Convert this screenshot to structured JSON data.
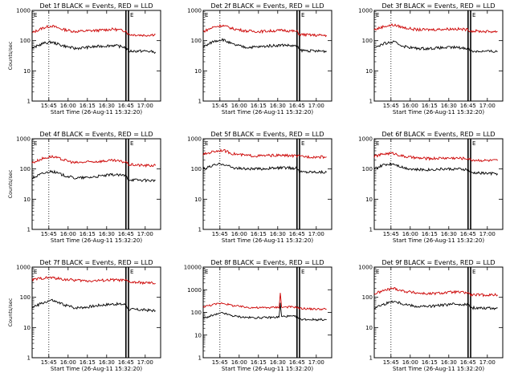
{
  "layout": {
    "columns": 3,
    "rows": 3
  },
  "chart_data": [
    {
      "type": "line",
      "title": "Det 1f BLACK = Events, RED = LLD",
      "xlabel": "Start Time (26-Aug-11 15:32:20)",
      "ylabel": "Counts/sec",
      "yscale": "log",
      "ylim": [
        1,
        1000
      ],
      "yticks": [
        1,
        10,
        100,
        1000
      ],
      "xlim": [
        "15:32",
        "17:12"
      ],
      "xticks": [
        "15:45",
        "16:00",
        "16:15",
        "16:30",
        "16:45",
        "17:00"
      ],
      "vlines": [
        {
          "time": "15:45",
          "style": "dotted"
        },
        {
          "time": "16:45",
          "style": "solid-thick"
        },
        {
          "time": "16:47",
          "style": "solid-thick"
        }
      ],
      "markers": [
        {
          "time": "15:32",
          "label": "E"
        },
        {
          "time": "16:47",
          "label": "E"
        }
      ],
      "series": [
        {
          "color": "#cc0000",
          "x": [
            "15:32",
            "15:40",
            "15:47",
            "15:55",
            "16:05",
            "16:15",
            "16:25",
            "16:35",
            "16:45",
            "16:47",
            "17:00",
            "17:08"
          ],
          "y": [
            180,
            260,
            310,
            240,
            200,
            210,
            220,
            240,
            210,
            160,
            150,
            160
          ]
        },
        {
          "color": "#000000",
          "x": [
            "15:32",
            "15:40",
            "15:47",
            "15:55",
            "16:05",
            "16:15",
            "16:25",
            "16:35",
            "16:45",
            "16:47",
            "17:00",
            "17:08"
          ],
          "y": [
            55,
            80,
            90,
            70,
            55,
            60,
            65,
            70,
            60,
            45,
            45,
            42
          ]
        }
      ]
    },
    {
      "type": "line",
      "title": "Det 2f BLACK = Events, RED = LLD",
      "xlabel": "Start Time (26-Aug-11 15:32:20)",
      "ylabel": "",
      "yscale": "log",
      "ylim": [
        1,
        1000
      ],
      "yticks": [
        1,
        10,
        100,
        1000
      ],
      "xlim": [
        "15:32",
        "17:12"
      ],
      "xticks": [
        "15:45",
        "16:00",
        "16:15",
        "16:30",
        "16:45",
        "17:00"
      ],
      "vlines": [
        {
          "time": "15:45",
          "style": "dotted"
        },
        {
          "time": "16:45",
          "style": "solid-thick"
        },
        {
          "time": "16:47",
          "style": "solid-thick"
        }
      ],
      "markers": [
        {
          "time": "15:32",
          "label": "E"
        },
        {
          "time": "16:47",
          "label": "E"
        }
      ],
      "series": [
        {
          "color": "#cc0000",
          "x": [
            "15:32",
            "15:40",
            "15:47",
            "15:55",
            "16:05",
            "16:15",
            "16:25",
            "16:35",
            "16:45",
            "16:47",
            "17:00",
            "17:08"
          ],
          "y": [
            200,
            280,
            320,
            250,
            210,
            200,
            210,
            220,
            200,
            160,
            150,
            150
          ]
        },
        {
          "color": "#000000",
          "x": [
            "15:32",
            "15:40",
            "15:47",
            "15:55",
            "16:05",
            "16:15",
            "16:25",
            "16:35",
            "16:45",
            "16:47",
            "17:00",
            "17:08"
          ],
          "y": [
            60,
            95,
            110,
            75,
            60,
            62,
            68,
            72,
            65,
            48,
            45,
            45
          ]
        }
      ]
    },
    {
      "type": "line",
      "title": "Det 3f BLACK = Events, RED = LLD",
      "xlabel": "Start Time (26-Aug-11 15:32:20)",
      "ylabel": "",
      "yscale": "log",
      "ylim": [
        1,
        1000
      ],
      "yticks": [
        1,
        10,
        100,
        1000
      ],
      "xlim": [
        "15:32",
        "17:12"
      ],
      "xticks": [
        "15:45",
        "16:00",
        "16:15",
        "16:30",
        "16:45",
        "17:00"
      ],
      "vlines": [
        {
          "time": "15:45",
          "style": "dotted"
        },
        {
          "time": "16:45",
          "style": "solid-thick"
        },
        {
          "time": "16:47",
          "style": "solid-thick"
        }
      ],
      "markers": [
        {
          "time": "15:32",
          "label": "E"
        },
        {
          "time": "16:47",
          "label": "E"
        }
      ],
      "series": [
        {
          "color": "#cc0000",
          "x": [
            "15:32",
            "15:40",
            "15:47",
            "15:55",
            "16:05",
            "16:15",
            "16:25",
            "16:35",
            "16:45",
            "16:47",
            "17:00",
            "17:08"
          ],
          "y": [
            230,
            300,
            330,
            270,
            230,
            230,
            240,
            245,
            230,
            210,
            200,
            200
          ]
        },
        {
          "color": "#000000",
          "x": [
            "15:32",
            "15:40",
            "15:47",
            "15:55",
            "16:05",
            "16:15",
            "16:25",
            "16:35",
            "16:45",
            "16:47",
            "17:00",
            "17:08"
          ],
          "y": [
            60,
            80,
            90,
            65,
            55,
            55,
            58,
            60,
            55,
            45,
            44,
            44
          ]
        }
      ]
    },
    {
      "type": "line",
      "title": "Det 4f BLACK = Events, RED = LLD",
      "xlabel": "Start Time (26-Aug-11 15:32:20)",
      "ylabel": "Counts/sec",
      "yscale": "log",
      "ylim": [
        1,
        1000
      ],
      "yticks": [
        1,
        10,
        100,
        1000
      ],
      "xlim": [
        "15:32",
        "17:12"
      ],
      "xticks": [
        "15:45",
        "16:00",
        "16:15",
        "16:30",
        "16:45",
        "17:00"
      ],
      "vlines": [
        {
          "time": "15:45",
          "style": "dotted"
        },
        {
          "time": "16:45",
          "style": "solid-thick"
        },
        {
          "time": "16:47",
          "style": "solid-thick"
        }
      ],
      "markers": [
        {
          "time": "15:32",
          "label": "E"
        },
        {
          "time": "16:47",
          "label": "E"
        }
      ],
      "series": [
        {
          "color": "#cc0000",
          "x": [
            "15:32",
            "15:40",
            "15:47",
            "15:55",
            "16:05",
            "16:15",
            "16:25",
            "16:35",
            "16:45",
            "16:47",
            "17:00",
            "17:08"
          ],
          "y": [
            160,
            220,
            260,
            210,
            160,
            170,
            180,
            190,
            170,
            140,
            130,
            130
          ]
        },
        {
          "color": "#000000",
          "x": [
            "15:32",
            "15:40",
            "15:47",
            "15:55",
            "16:05",
            "16:15",
            "16:25",
            "16:35",
            "16:45",
            "16:47",
            "17:00",
            "17:08"
          ],
          "y": [
            50,
            70,
            85,
            65,
            50,
            52,
            58,
            65,
            60,
            45,
            42,
            42
          ]
        }
      ]
    },
    {
      "type": "line",
      "title": "Det 5f BLACK = Events, RED = LLD",
      "xlabel": "Start Time (26-Aug-11 15:32:20)",
      "ylabel": "",
      "yscale": "log",
      "ylim": [
        1,
        1000
      ],
      "yticks": [
        1,
        10,
        100,
        1000
      ],
      "xlim": [
        "15:32",
        "17:12"
      ],
      "xticks": [
        "15:45",
        "16:00",
        "16:15",
        "16:30",
        "16:45",
        "17:00"
      ],
      "vlines": [
        {
          "time": "15:45",
          "style": "dotted"
        },
        {
          "time": "16:45",
          "style": "solid-thick"
        },
        {
          "time": "16:47",
          "style": "solid-thick"
        }
      ],
      "markers": [
        {
          "time": "15:32",
          "label": "E"
        },
        {
          "time": "16:47",
          "label": "E"
        }
      ],
      "series": [
        {
          "color": "#cc0000",
          "x": [
            "15:32",
            "15:40",
            "15:47",
            "15:55",
            "16:05",
            "16:15",
            "16:25",
            "16:35",
            "16:45",
            "16:47",
            "17:00",
            "17:08"
          ],
          "y": [
            300,
            380,
            420,
            320,
            280,
            270,
            280,
            280,
            270,
            260,
            250,
            250
          ]
        },
        {
          "color": "#000000",
          "x": [
            "15:32",
            "15:40",
            "15:47",
            "15:55",
            "16:05",
            "16:15",
            "16:25",
            "16:35",
            "16:45",
            "16:47",
            "17:00",
            "17:08"
          ],
          "y": [
            100,
            130,
            150,
            110,
            100,
            100,
            105,
            110,
            105,
            80,
            80,
            78
          ]
        }
      ]
    },
    {
      "type": "line",
      "title": "Det 6f BLACK = Events, RED = LLD",
      "xlabel": "Start Time (26-Aug-11 15:32:20)",
      "ylabel": "",
      "yscale": "log",
      "ylim": [
        1,
        1000
      ],
      "yticks": [
        1,
        10,
        100,
        1000
      ],
      "xlim": [
        "15:32",
        "17:12"
      ],
      "xticks": [
        "15:45",
        "16:00",
        "16:15",
        "16:30",
        "16:45",
        "17:00"
      ],
      "vlines": [
        {
          "time": "15:45",
          "style": "dotted"
        },
        {
          "time": "16:45",
          "style": "solid-thick"
        },
        {
          "time": "16:47",
          "style": "solid-thick"
        }
      ],
      "markers": [
        {
          "time": "15:32",
          "label": "E"
        },
        {
          "time": "16:47",
          "label": "E"
        }
      ],
      "series": [
        {
          "color": "#cc0000",
          "x": [
            "15:32",
            "15:40",
            "15:47",
            "15:55",
            "16:05",
            "16:15",
            "16:25",
            "16:35",
            "16:45",
            "16:47",
            "17:00",
            "17:08"
          ],
          "y": [
            260,
            320,
            330,
            260,
            230,
            220,
            230,
            230,
            220,
            200,
            190,
            190
          ]
        },
        {
          "color": "#000000",
          "x": [
            "15:32",
            "15:40",
            "15:47",
            "15:55",
            "16:05",
            "16:15",
            "16:25",
            "16:35",
            "16:45",
            "16:47",
            "17:00",
            "17:08"
          ],
          "y": [
            100,
            140,
            150,
            110,
            95,
            95,
            100,
            100,
            95,
            75,
            72,
            70
          ]
        }
      ]
    },
    {
      "type": "line",
      "title": "Det 7f BLACK = Events, RED = LLD",
      "xlabel": "Start Time (26-Aug-11 15:32:20)",
      "ylabel": "Counts/sec",
      "yscale": "log",
      "ylim": [
        1,
        1000
      ],
      "yticks": [
        1,
        10,
        100,
        1000
      ],
      "xlim": [
        "15:32",
        "17:12"
      ],
      "xticks": [
        "15:45",
        "16:00",
        "16:15",
        "16:30",
        "16:45",
        "17:00"
      ],
      "vlines": [
        {
          "time": "15:45",
          "style": "dotted"
        },
        {
          "time": "16:45",
          "style": "solid-thick"
        },
        {
          "time": "16:47",
          "style": "solid-thick"
        }
      ],
      "markers": [
        {
          "time": "15:32",
          "label": "E"
        },
        {
          "time": "16:47",
          "label": "E"
        }
      ],
      "series": [
        {
          "color": "#cc0000",
          "x": [
            "15:32",
            "15:40",
            "15:47",
            "15:55",
            "16:05",
            "16:15",
            "16:25",
            "16:35",
            "16:45",
            "16:47",
            "17:00",
            "17:08"
          ],
          "y": [
            380,
            430,
            450,
            400,
            370,
            350,
            360,
            380,
            360,
            320,
            300,
            290
          ]
        },
        {
          "color": "#000000",
          "x": [
            "15:32",
            "15:40",
            "15:47",
            "15:55",
            "16:05",
            "16:15",
            "16:25",
            "16:35",
            "16:45",
            "16:47",
            "17:00",
            "17:08"
          ],
          "y": [
            45,
            65,
            80,
            60,
            45,
            48,
            55,
            60,
            58,
            40,
            38,
            36
          ]
        }
      ]
    },
    {
      "type": "line",
      "title": "Det 8f BLACK = Events, RED = LLD",
      "xlabel": "Start Time (26-Aug-11 15:32:20)",
      "ylabel": "",
      "yscale": "log",
      "ylim": [
        1,
        10000
      ],
      "yticks": [
        1,
        10,
        100,
        1000,
        10000
      ],
      "xlim": [
        "15:32",
        "17:12"
      ],
      "xticks": [
        "15:45",
        "16:00",
        "16:15",
        "16:30",
        "16:45",
        "17:00"
      ],
      "vlines": [
        {
          "time": "15:45",
          "style": "dotted"
        },
        {
          "time": "16:45",
          "style": "solid-thick"
        },
        {
          "time": "16:47",
          "style": "solid-thick"
        }
      ],
      "markers": [
        {
          "time": "15:32",
          "label": "E"
        },
        {
          "time": "16:47",
          "label": "E"
        }
      ],
      "series": [
        {
          "color": "#cc0000",
          "x": [
            "15:32",
            "15:40",
            "15:47",
            "15:55",
            "16:05",
            "16:15",
            "16:25",
            "16:31",
            "16:32",
            "16:33",
            "16:37",
            "16:45",
            "16:47",
            "17:00",
            "17:08"
          ],
          "y": [
            180,
            220,
            260,
            200,
            170,
            160,
            165,
            170,
            700,
            170,
            175,
            170,
            150,
            140,
            140
          ]
        },
        {
          "color": "#000000",
          "x": [
            "15:32",
            "15:40",
            "15:47",
            "15:55",
            "16:05",
            "16:15",
            "16:25",
            "16:31",
            "16:32",
            "16:33",
            "16:37",
            "16:45",
            "16:47",
            "17:00",
            "17:08"
          ],
          "y": [
            55,
            75,
            95,
            70,
            60,
            58,
            60,
            62,
            250,
            65,
            68,
            65,
            50,
            48,
            48
          ]
        }
      ]
    },
    {
      "type": "line",
      "title": "Det 9f BLACK = Events, RED = LLD",
      "xlabel": "Start Time (26-Aug-11 15:32:20)",
      "ylabel": "",
      "yscale": "log",
      "ylim": [
        1,
        1000
      ],
      "yticks": [
        1,
        10,
        100,
        1000
      ],
      "xlim": [
        "15:32",
        "17:12"
      ],
      "xticks": [
        "15:45",
        "16:00",
        "16:15",
        "16:30",
        "16:45",
        "17:00"
      ],
      "vlines": [
        {
          "time": "15:45",
          "style": "dotted"
        },
        {
          "time": "16:45",
          "style": "solid-thick"
        },
        {
          "time": "16:47",
          "style": "solid-thick"
        }
      ],
      "markers": [
        {
          "time": "15:32",
          "label": "E"
        },
        {
          "time": "16:47",
          "label": "E"
        }
      ],
      "series": [
        {
          "color": "#cc0000",
          "x": [
            "15:32",
            "15:40",
            "15:47",
            "15:55",
            "16:05",
            "16:15",
            "16:25",
            "16:35",
            "16:45",
            "16:47",
            "17:00",
            "17:08"
          ],
          "y": [
            130,
            170,
            200,
            160,
            140,
            130,
            140,
            150,
            140,
            120,
            120,
            120
          ]
        },
        {
          "color": "#000000",
          "x": [
            "15:32",
            "15:40",
            "15:47",
            "15:55",
            "16:05",
            "16:15",
            "16:25",
            "16:35",
            "16:45",
            "16:47",
            "17:00",
            "17:08"
          ],
          "y": [
            45,
            60,
            75,
            60,
            50,
            50,
            55,
            60,
            58,
            45,
            44,
            44
          ]
        }
      ]
    }
  ]
}
